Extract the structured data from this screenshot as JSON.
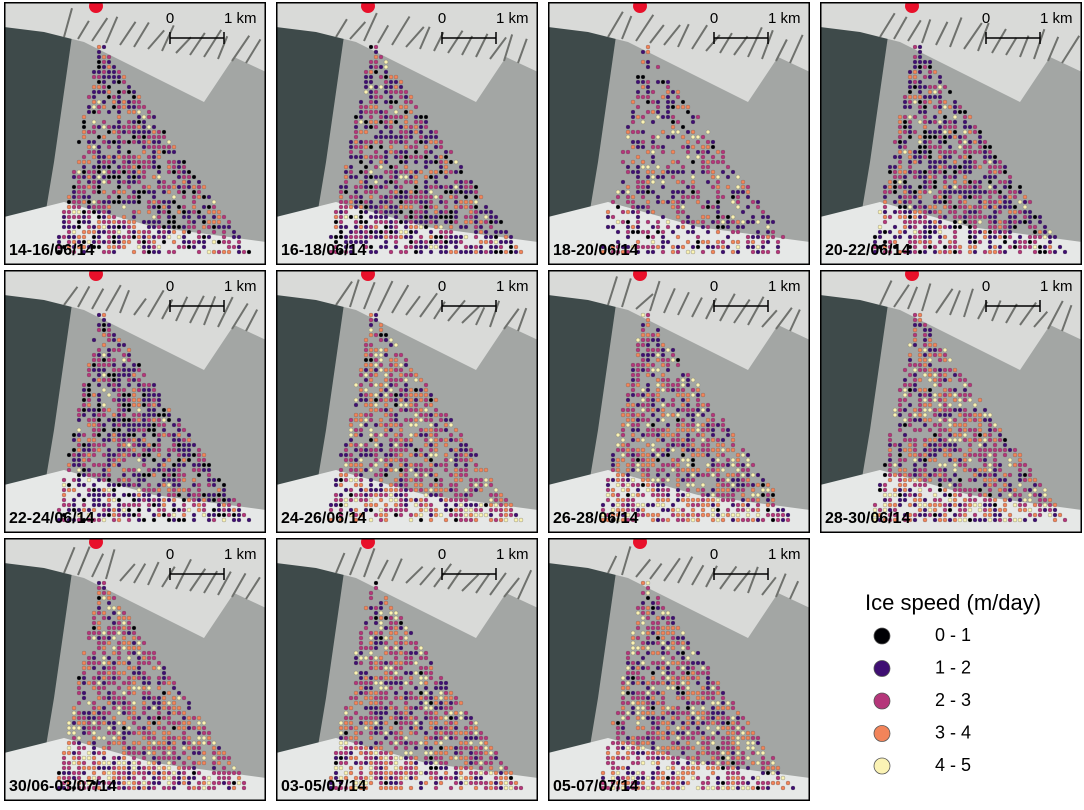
{
  "scale_bar": {
    "start": "0",
    "end": "1 km"
  },
  "panels": [
    {
      "label": "14-16/06/14"
    },
    {
      "label": "16-18/06/14"
    },
    {
      "label": "18-20/06/14"
    },
    {
      "label": "20-22/06/14"
    },
    {
      "label": "22-24/06/14"
    },
    {
      "label": "24-26/06/14"
    },
    {
      "label": "26-28/06/14"
    },
    {
      "label": "28-30/06/14"
    },
    {
      "label": "30/06-03/07/14"
    },
    {
      "label": "03-05/07/14"
    },
    {
      "label": "05-07/07/14"
    }
  ],
  "legend": {
    "title": "Ice speed (m/day)",
    "items": [
      {
        "label": "0 - 1",
        "color": "#000004"
      },
      {
        "label": "1 - 2",
        "color": "#3f0f72"
      },
      {
        "label": "2 - 3",
        "color": "#b5367a"
      },
      {
        "label": "3 - 4",
        "color": "#f2845a"
      },
      {
        "label": "4 - 5",
        "color": "#fbf3b5"
      }
    ]
  }
}
